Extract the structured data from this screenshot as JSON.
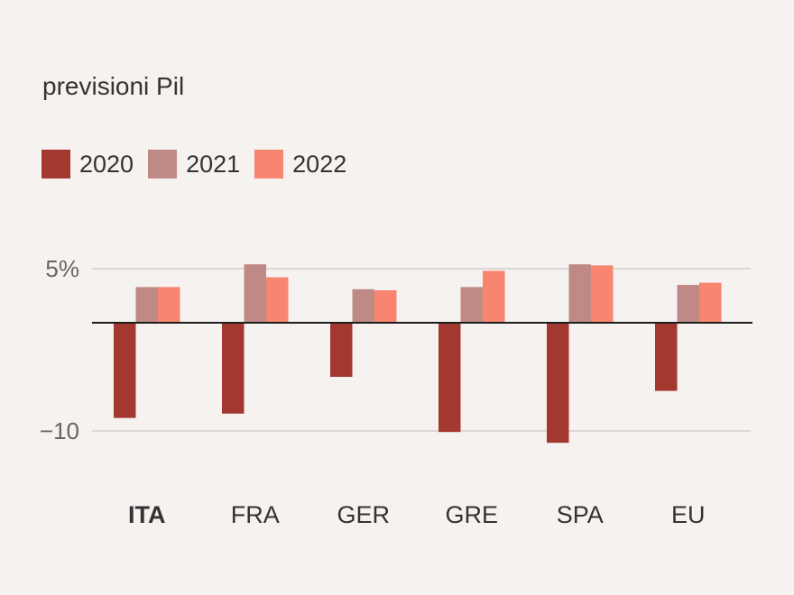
{
  "chart_data": {
    "type": "bar",
    "title": "previsioni Pil",
    "categories": [
      "ITA",
      "FRA",
      "GER",
      "GRE",
      "SPA",
      "EU"
    ],
    "highlight_category": "ITA",
    "series": [
      {
        "name": "2020",
        "color": "#a33830",
        "values": [
          -8.8,
          -8.4,
          -5.0,
          -10.1,
          -11.1,
          -6.3
        ]
      },
      {
        "name": "2021",
        "color": "#bf8a86",
        "values": [
          3.3,
          5.4,
          3.1,
          3.3,
          5.4,
          3.5
        ]
      },
      {
        "name": "2022",
        "color": "#f7856f",
        "values": [
          3.3,
          4.2,
          3.0,
          4.8,
          5.3,
          3.7
        ]
      }
    ],
    "y_ticks": [
      {
        "value": 5,
        "label": "5%"
      },
      {
        "value": -10,
        "label": "−10"
      }
    ],
    "ylim": [
      -12,
      6
    ],
    "grid": true,
    "legend_position": "top-left",
    "xlabel": "",
    "ylabel": ""
  }
}
